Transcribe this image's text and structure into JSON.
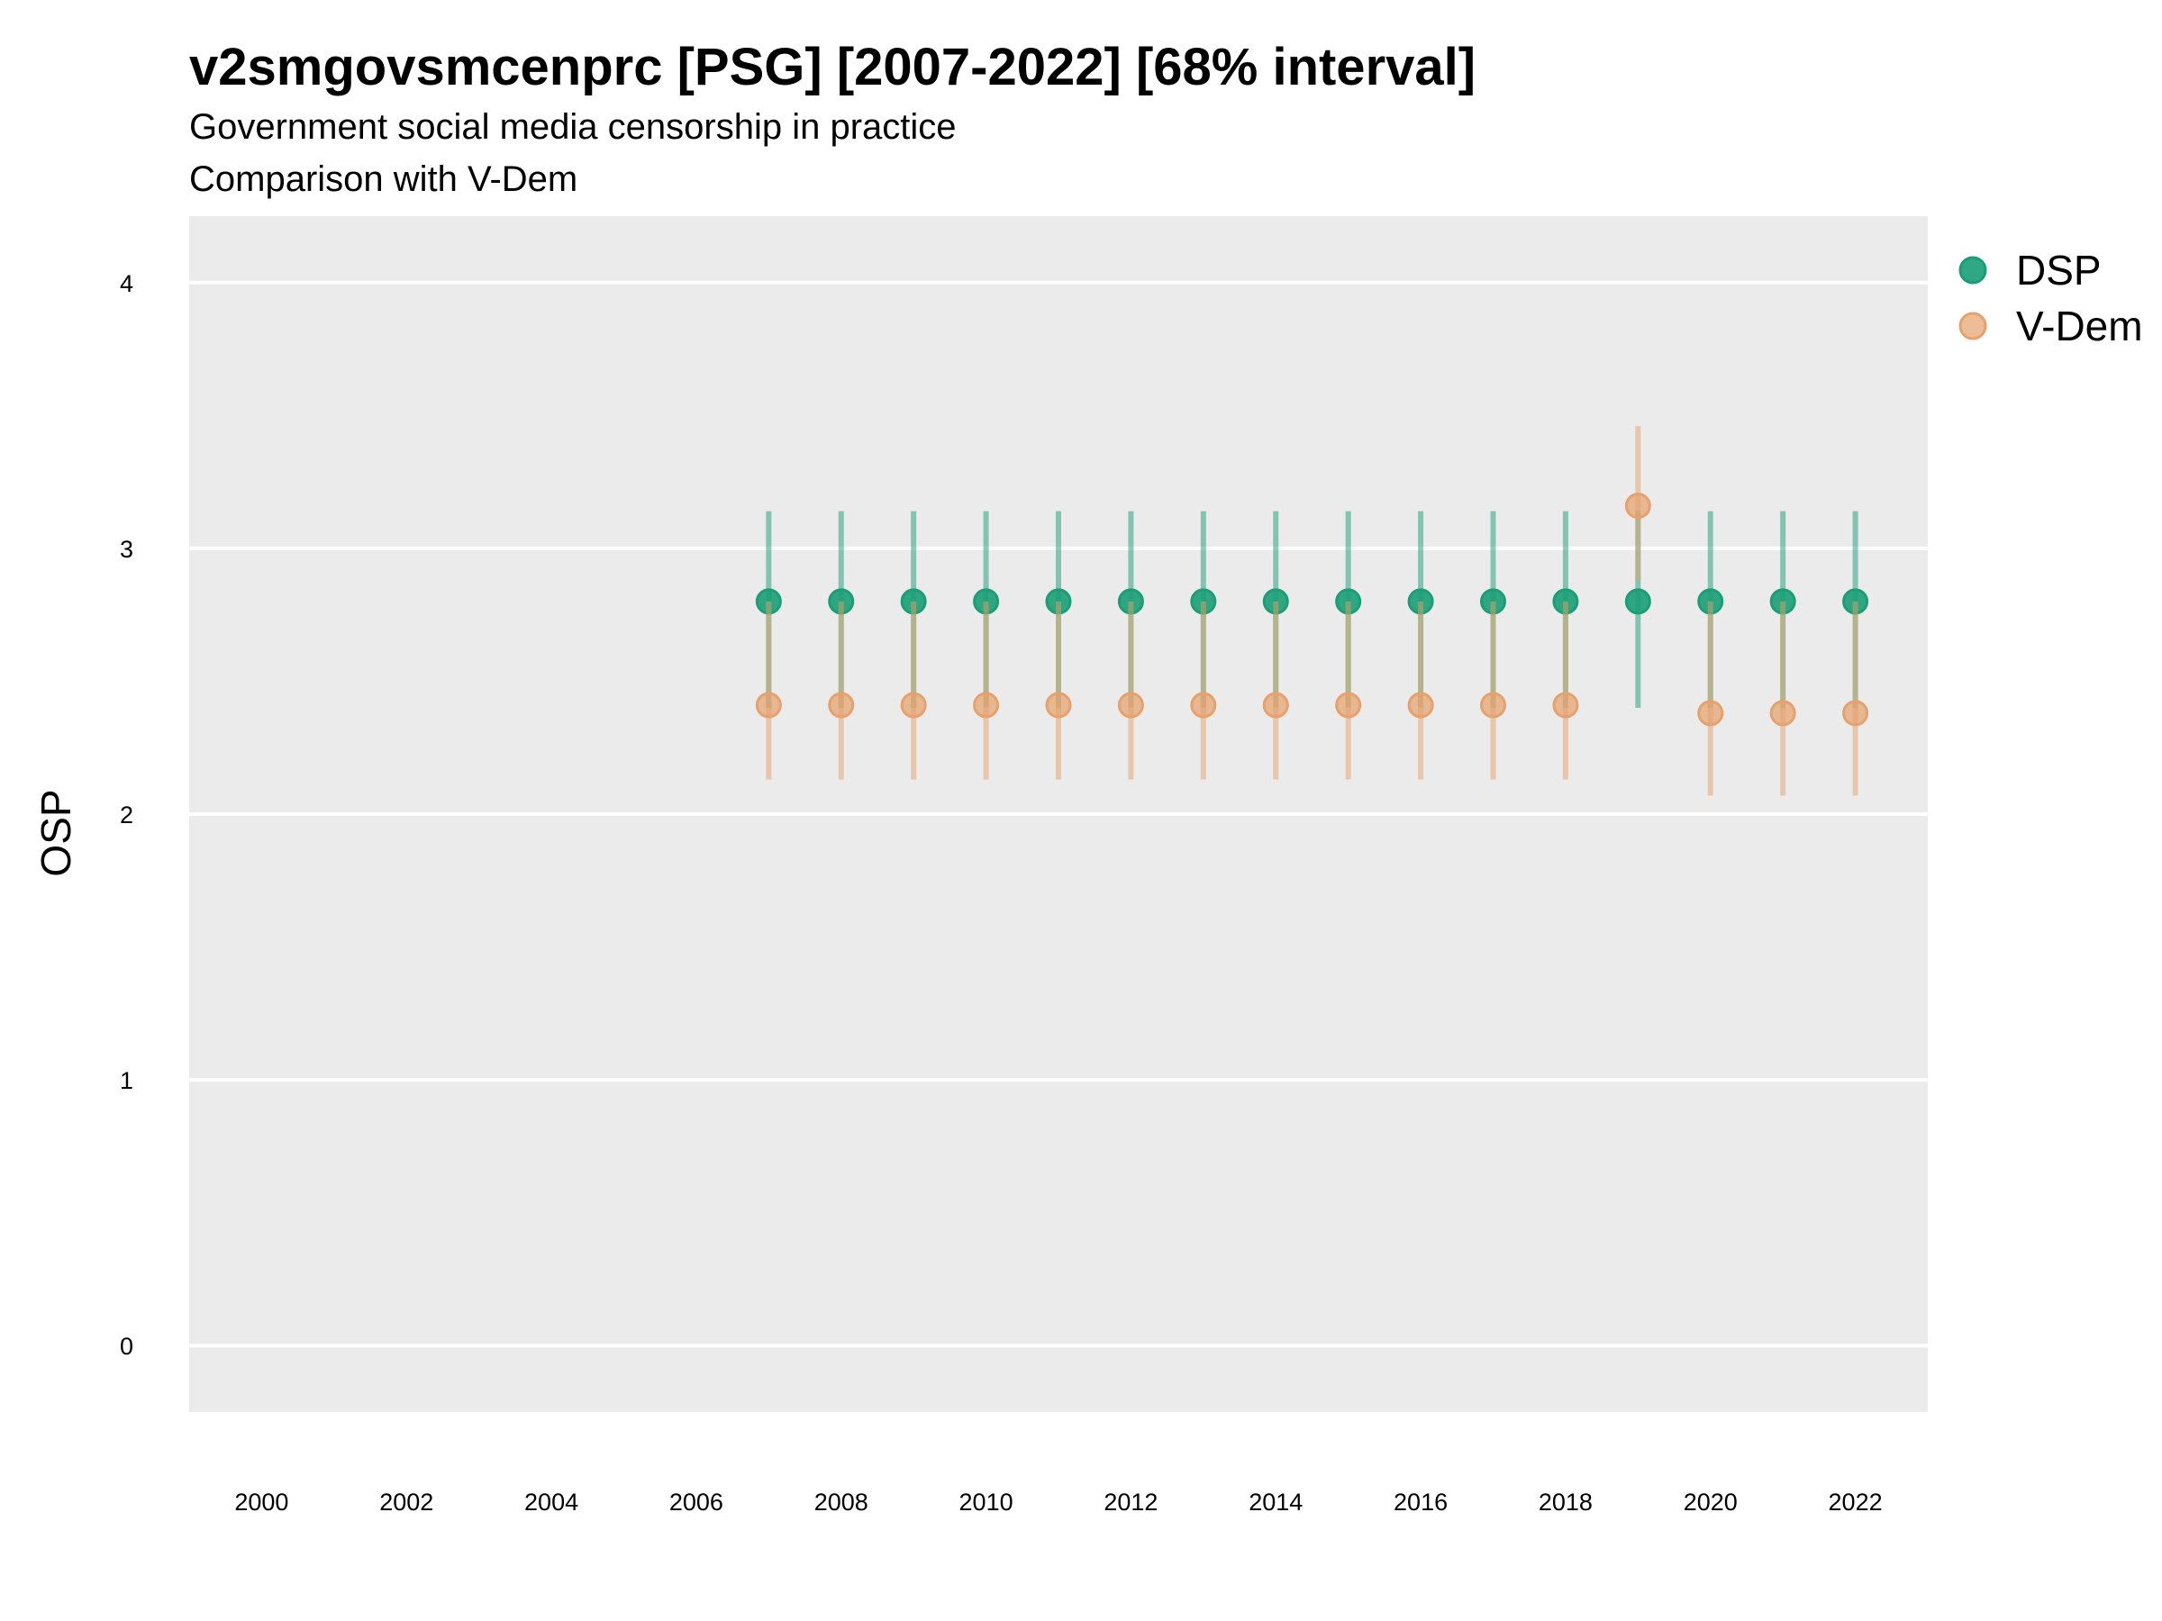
{
  "chart_data": {
    "type": "scatter",
    "title": "v2smgovsmcenprc [PSG] [2007-2022] [68% interval]",
    "subtitle": "Government social media censorship in practice",
    "subtitle2": "Comparison with V-Dem",
    "xlabel": "",
    "ylabel": "OSP",
    "xlim": [
      1999,
      2023
    ],
    "ylim": [
      -0.25,
      4.25
    ],
    "x_ticks": [
      2000,
      2002,
      2004,
      2006,
      2008,
      2010,
      2012,
      2014,
      2016,
      2018,
      2020,
      2022
    ],
    "y_ticks": [
      0,
      1,
      2,
      3,
      4
    ],
    "grid": true,
    "legend_position": "right",
    "series": [
      {
        "name": "DSP",
        "color": "#1b9e77",
        "x": [
          2007,
          2008,
          2009,
          2010,
          2011,
          2012,
          2013,
          2014,
          2015,
          2016,
          2017,
          2018,
          2019,
          2020,
          2021,
          2022
        ],
        "values": [
          2.8,
          2.8,
          2.8,
          2.8,
          2.8,
          2.8,
          2.8,
          2.8,
          2.8,
          2.8,
          2.8,
          2.8,
          2.8,
          2.8,
          2.8,
          2.8
        ],
        "lower": [
          2.4,
          2.4,
          2.4,
          2.4,
          2.4,
          2.4,
          2.4,
          2.4,
          2.4,
          2.4,
          2.4,
          2.4,
          2.4,
          2.4,
          2.4,
          2.4
        ],
        "upper": [
          3.14,
          3.14,
          3.14,
          3.14,
          3.14,
          3.14,
          3.14,
          3.14,
          3.14,
          3.14,
          3.14,
          3.14,
          3.14,
          3.14,
          3.14,
          3.14
        ]
      },
      {
        "name": "V-Dem",
        "color": "#e6a16c",
        "x": [
          2007,
          2008,
          2009,
          2010,
          2011,
          2012,
          2013,
          2014,
          2015,
          2016,
          2017,
          2018,
          2019,
          2020,
          2021,
          2022
        ],
        "values": [
          2.41,
          2.41,
          2.41,
          2.41,
          2.41,
          2.41,
          2.41,
          2.41,
          2.41,
          2.41,
          2.41,
          2.41,
          3.16,
          2.38,
          2.38,
          2.38
        ],
        "lower": [
          2.13,
          2.13,
          2.13,
          2.13,
          2.13,
          2.13,
          2.13,
          2.13,
          2.13,
          2.13,
          2.13,
          2.13,
          2.88,
          2.07,
          2.07,
          2.07
        ],
        "upper": [
          2.8,
          2.8,
          2.8,
          2.8,
          2.8,
          2.8,
          2.8,
          2.8,
          2.8,
          2.8,
          2.8,
          2.8,
          3.46,
          2.8,
          2.8,
          2.8
        ]
      }
    ]
  }
}
